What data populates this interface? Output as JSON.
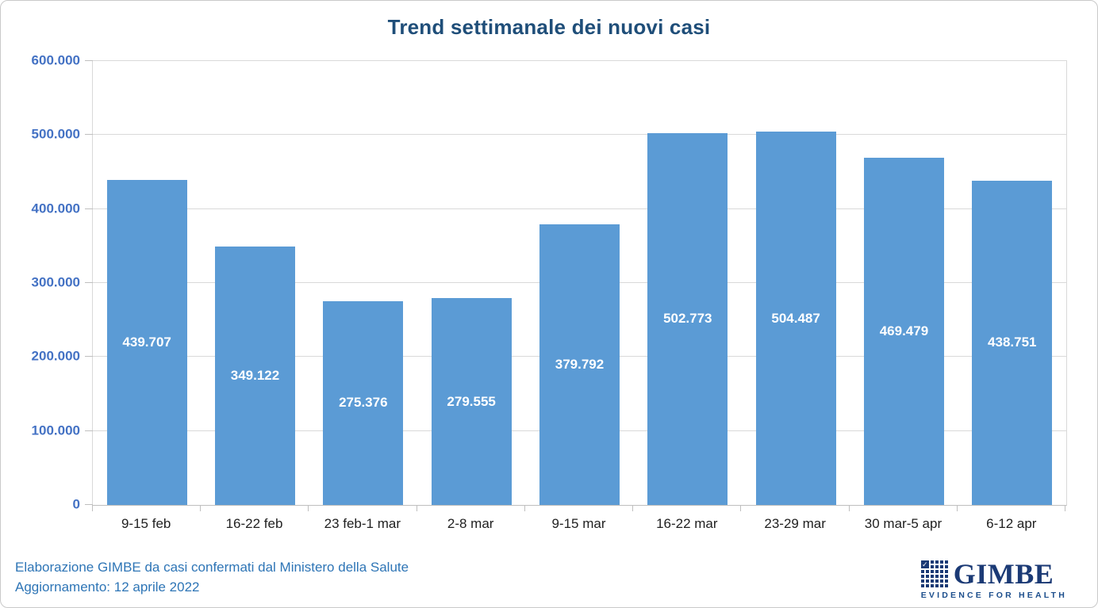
{
  "title": "Trend settimanale dei nuovi casi",
  "chart_data": {
    "type": "bar",
    "title": "Trend settimanale dei nuovi casi",
    "categories": [
      "9-15 feb",
      "16-22 feb",
      "23 feb-1 mar",
      "2-8 mar",
      "9-15 mar",
      "16-22 mar",
      "23-29 mar",
      "30 mar-5 apr",
      "6-12 apr"
    ],
    "values": [
      439707,
      349122,
      275376,
      279555,
      379792,
      502773,
      504487,
      469479,
      438751
    ],
    "value_labels": [
      "439.707",
      "349.122",
      "275.376",
      "279.555",
      "379.792",
      "502.773",
      "504.487",
      "469.479",
      "438.751"
    ],
    "xlabel": "",
    "ylabel": "",
    "ylim": [
      0,
      600000
    ],
    "ytick_interval": 100000,
    "ytick_labels": [
      "0",
      "100.000",
      "200.000",
      "300.000",
      "400.000",
      "500.000",
      "600.000"
    ],
    "grid": "horizontal-major",
    "legend": "none",
    "bar_color": "#5B9BD5",
    "value_label_color": "#FFFFFF",
    "value_label_position": "inside-center"
  },
  "footer": {
    "line1": "Elaborazione GIMBE da casi confermati dal Ministero della Salute",
    "line2": "Aggiornamento: 12 aprile 2022"
  },
  "logo": {
    "name": "GIMBE",
    "tagline": "EVIDENCE FOR HEALTH",
    "icon": "grid-checkmark-icon"
  },
  "colors": {
    "title_text": "#1F4E79",
    "y_axis_labels": "#4472C4",
    "x_axis_labels": "#212121",
    "bar_fill": "#5B9BD5",
    "gridline": "#D9D9D9",
    "axis_line": "#BFBFBF",
    "footer_text": "#2E75B6",
    "logo_navy": "#1B3A75"
  }
}
